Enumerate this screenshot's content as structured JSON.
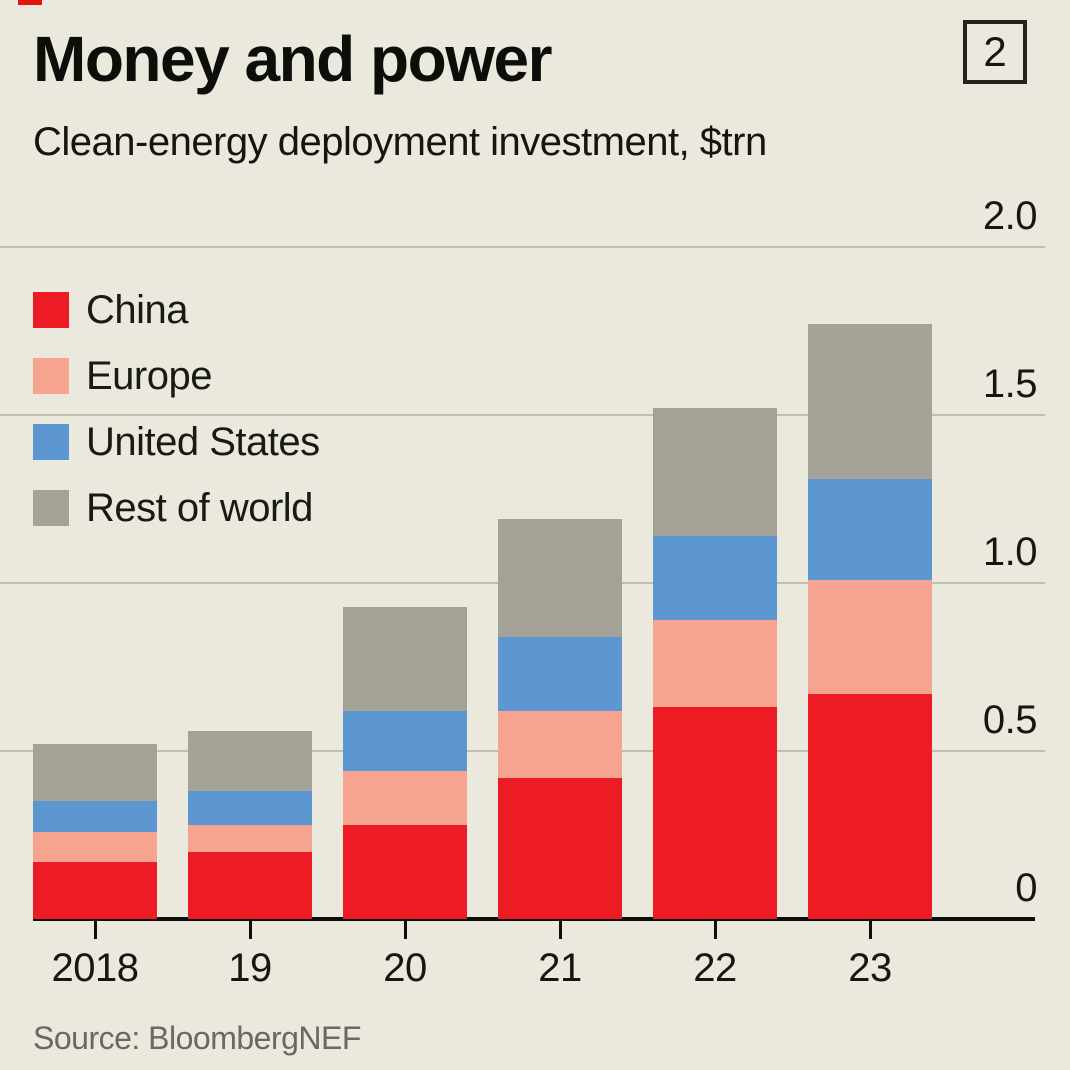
{
  "page_background": "#ebe9de",
  "header": {
    "tag_color": "#e3120b",
    "title": "Money and power",
    "subtitle": "Clean-energy deployment investment, $trn",
    "figure_number": "2"
  },
  "source": "Source: BloombergNEF",
  "chart_data": {
    "type": "bar",
    "stacked": true,
    "title": "Money and power",
    "subtitle": "Clean-energy deployment investment, $trn",
    "unit": "$trn",
    "categories": [
      "2018",
      "19",
      "20",
      "21",
      "22",
      "23"
    ],
    "series": [
      {
        "name": "China",
        "color": "#ed1c24",
        "values": [
          0.17,
          0.2,
          0.28,
          0.42,
          0.63,
          0.67
        ]
      },
      {
        "name": "Europe",
        "color": "#f6a48f",
        "values": [
          0.09,
          0.08,
          0.16,
          0.2,
          0.26,
          0.34
        ]
      },
      {
        "name": "United States",
        "color": "#5d97d2",
        "values": [
          0.09,
          0.1,
          0.18,
          0.22,
          0.25,
          0.3
        ]
      },
      {
        "name": "Rest of world",
        "color": "#a4a296",
        "values": [
          0.17,
          0.18,
          0.31,
          0.35,
          0.38,
          0.46
        ]
      }
    ],
    "totals": [
      0.52,
      0.56,
      0.93,
      1.19,
      1.52,
      1.77
    ],
    "ylim": [
      0,
      2.0
    ],
    "yticks": [
      0,
      0.5,
      1.0,
      1.5,
      2.0
    ],
    "ytick_labels": [
      "0",
      "0.5",
      "1.0",
      "1.5",
      "2.0"
    ],
    "grid": "horizontal",
    "legend_position": "upper-left-inside",
    "gridline_color": "#bfbeb3",
    "axis_color": "#0e0e0c"
  }
}
